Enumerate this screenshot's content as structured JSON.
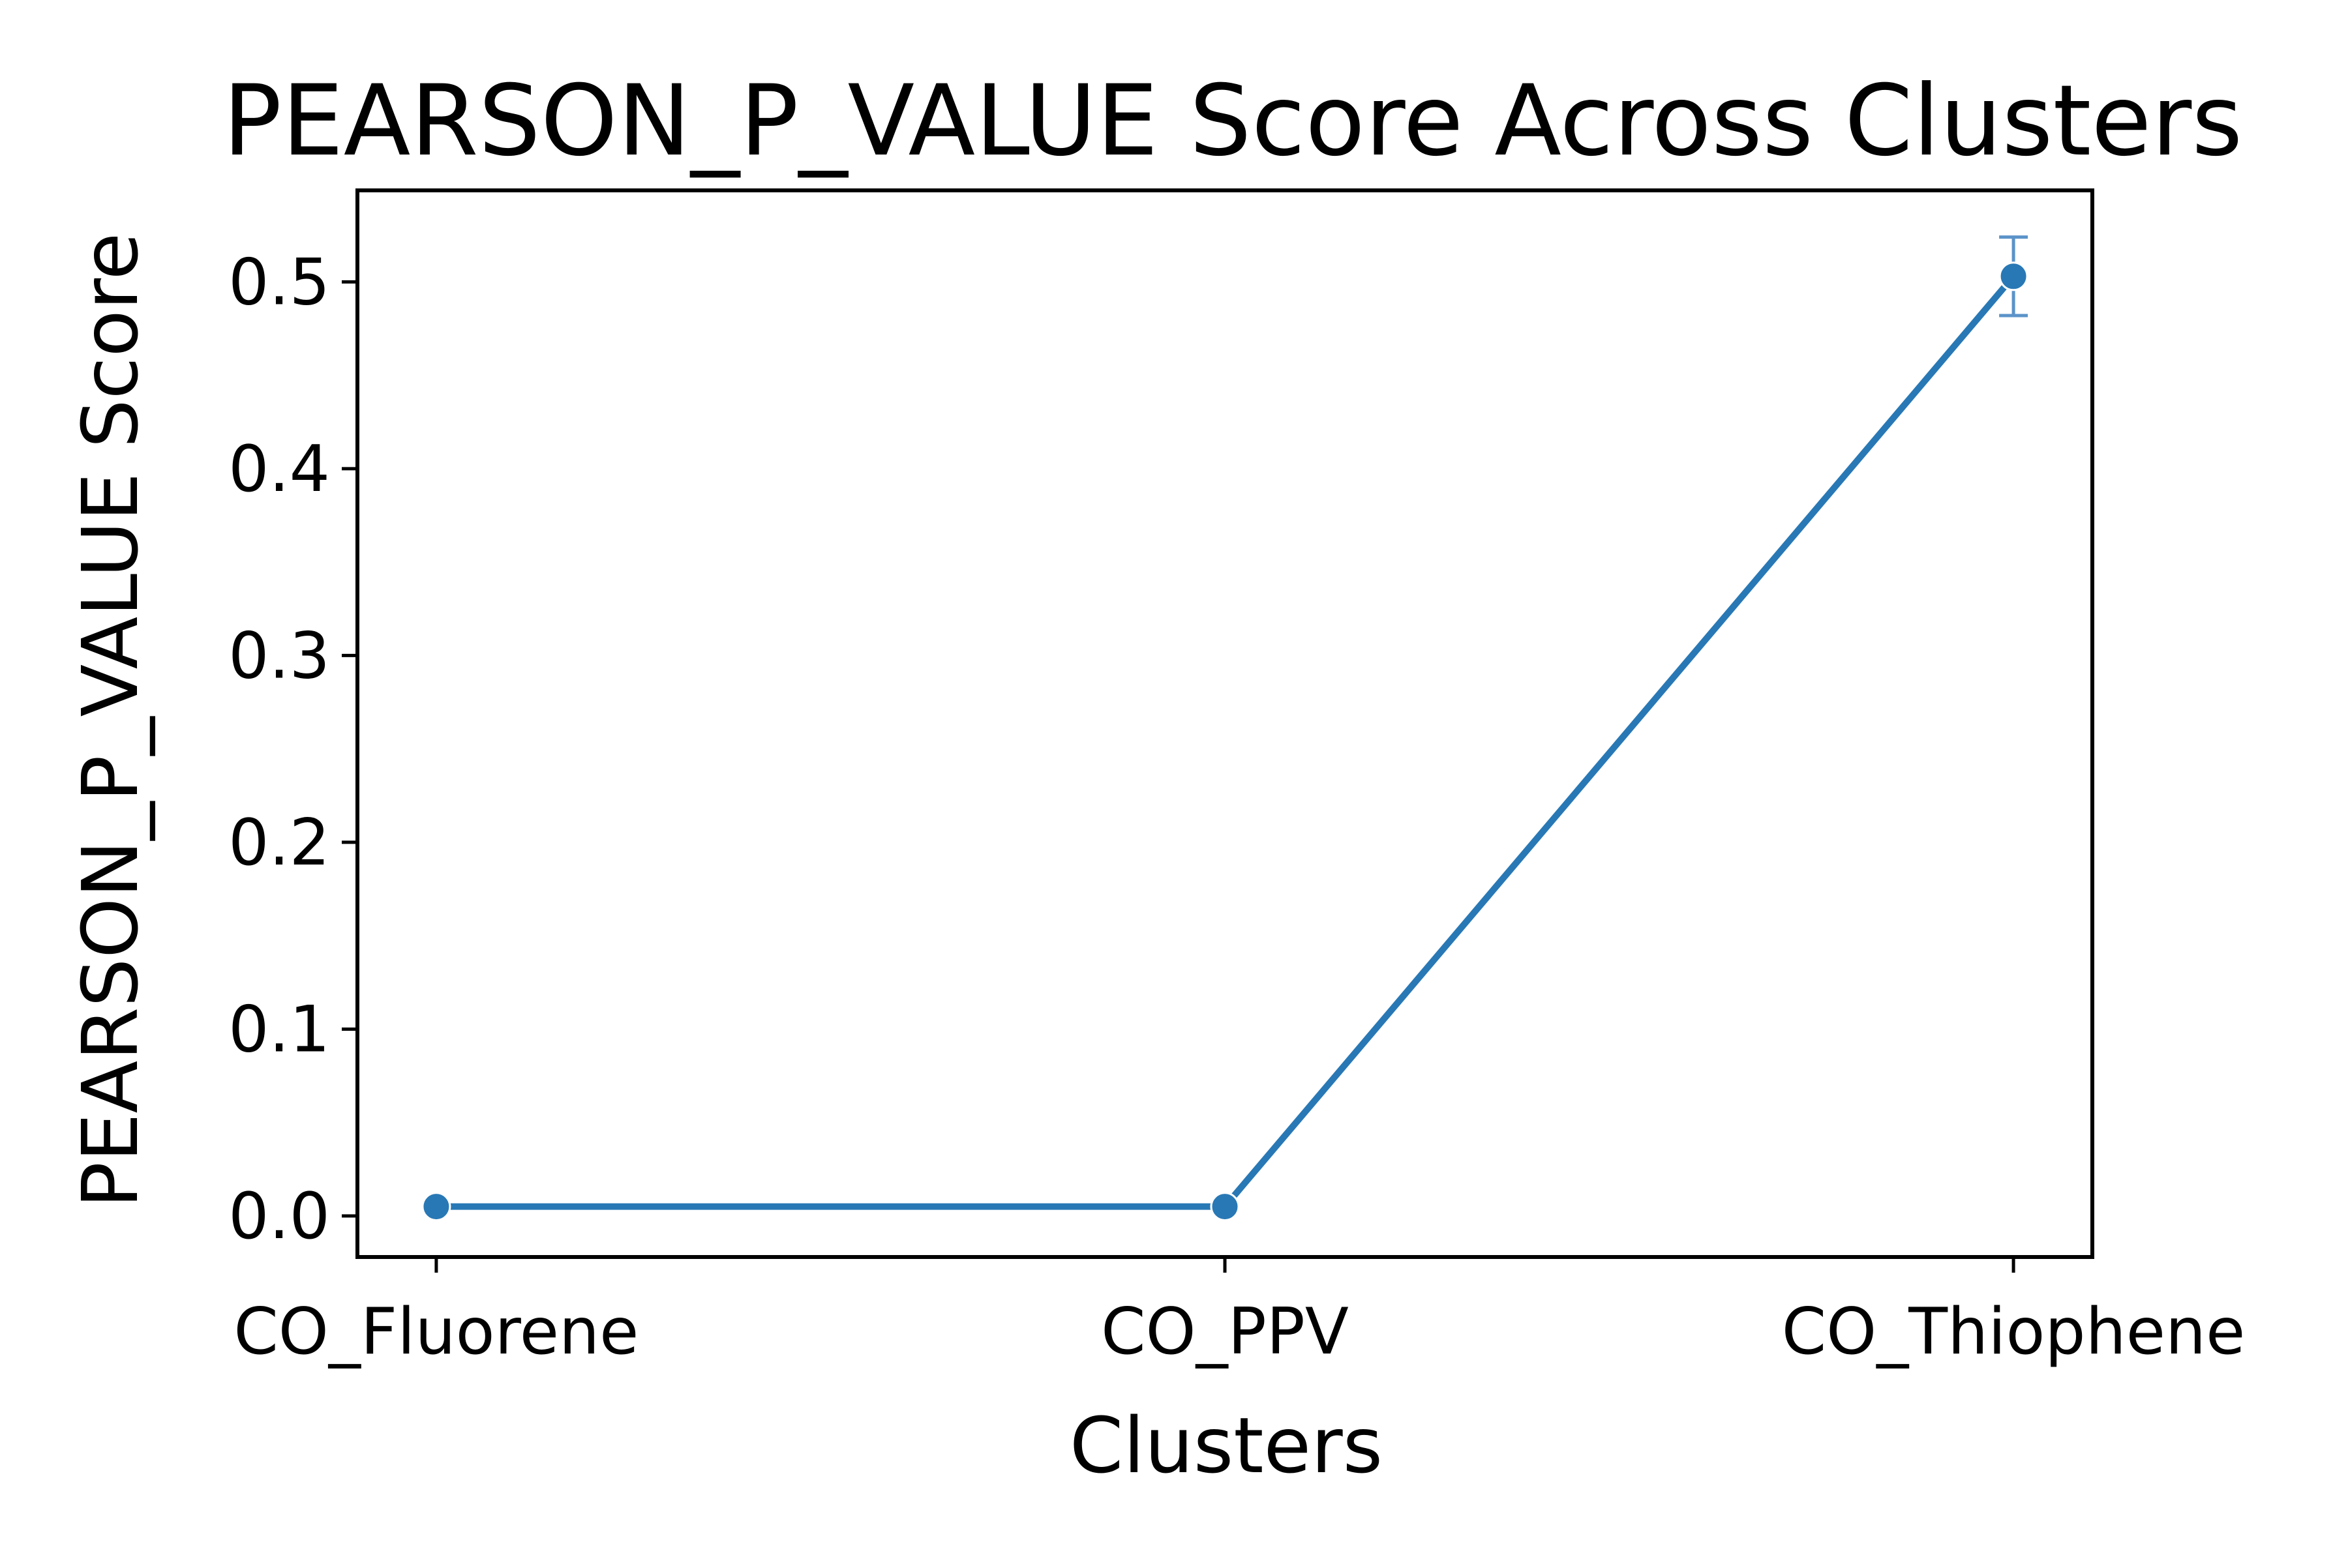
{
  "chart_data": {
    "type": "line",
    "title": "PEARSON_P_VALUE Score Across Clusters",
    "xlabel": "Clusters",
    "ylabel": "PEARSON_P_VALUE Score",
    "categories": [
      "CO_Fluorene",
      "CO_PPV",
      "CO_Thiophene"
    ],
    "series": [
      {
        "values": [
          0.005,
          0.005,
          0.503
        ],
        "error": [
          0.0,
          0.0,
          0.021
        ]
      }
    ],
    "ylim": [
      -0.022,
      0.549
    ],
    "yticks": [
      "0.0",
      "0.1",
      "0.2",
      "0.3",
      "0.4",
      "0.5"
    ],
    "grid": false,
    "line_color": "#2878b5",
    "error_color": "#5b93c9"
  }
}
